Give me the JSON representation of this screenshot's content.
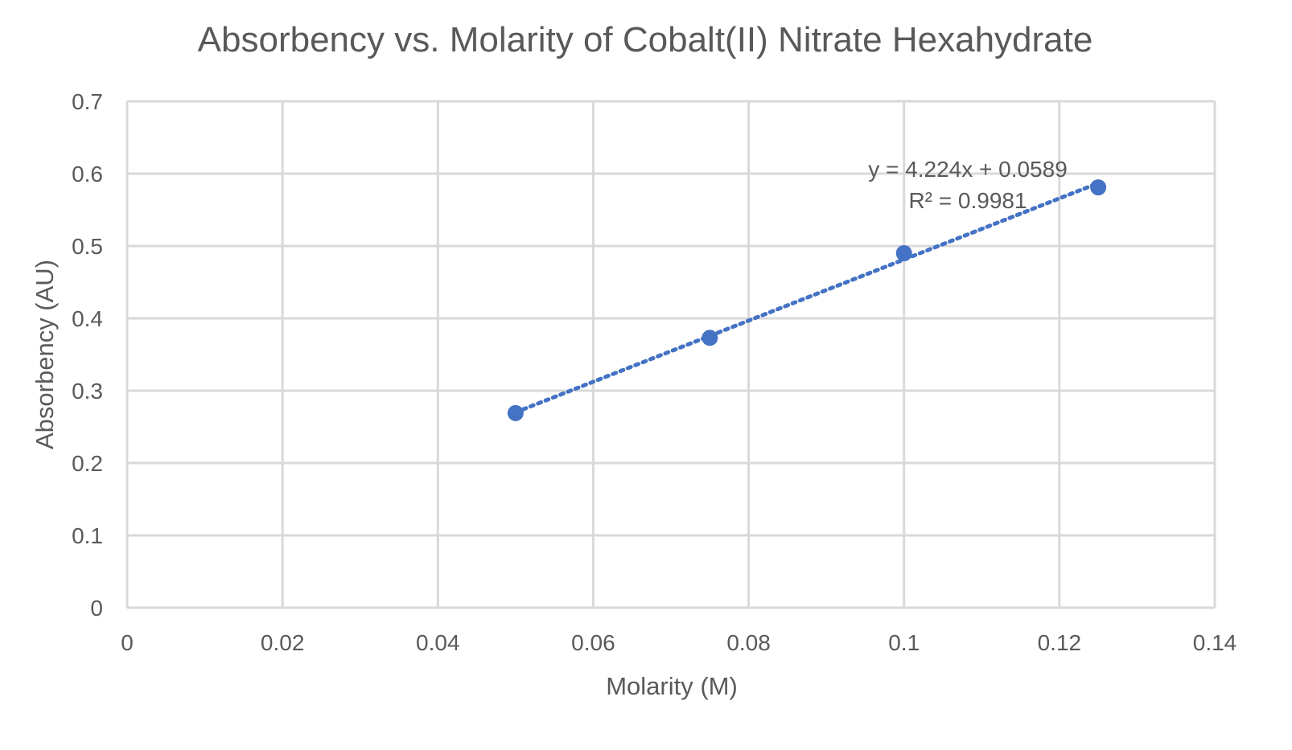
{
  "chart_data": {
    "type": "scatter",
    "title": "Absorbency vs. Molarity of Cobalt(II) Nitrate Hexahydrate",
    "xlabel": "Molarity (M)",
    "ylabel": "Absorbency (AU)",
    "xlim": [
      0,
      0.14
    ],
    "ylim": [
      0,
      0.7
    ],
    "x_ticks": [
      0,
      0.02,
      0.04,
      0.06,
      0.08,
      0.1,
      0.12,
      0.14
    ],
    "x_tick_labels": [
      "0",
      "0.02",
      "0.04",
      "0.06",
      "0.08",
      "0.1",
      "0.12",
      "0.14"
    ],
    "y_ticks": [
      0,
      0.1,
      0.2,
      0.3,
      0.4,
      0.5,
      0.6,
      0.7
    ],
    "y_tick_labels": [
      "0",
      "0.1",
      "0.2",
      "0.3",
      "0.4",
      "0.5",
      "0.6",
      "0.7"
    ],
    "grid": true,
    "legend": "none",
    "series": [
      {
        "x": [
          0.05,
          0.075,
          0.1,
          0.125
        ],
        "y": [
          0.269,
          0.373,
          0.49,
          0.581
        ]
      }
    ],
    "trendline": {
      "style": "dotted",
      "slope": 4.224,
      "intercept": 0.0589,
      "x_range": [
        0.05,
        0.125
      ],
      "equation_label": "y = 4.224x + 0.0589",
      "r2_label": "R² = 0.9981"
    },
    "colors": {
      "marker": "#4472C4",
      "trendline": "#4472C4",
      "grid": "#d9d9d9",
      "text": "#595959"
    }
  }
}
